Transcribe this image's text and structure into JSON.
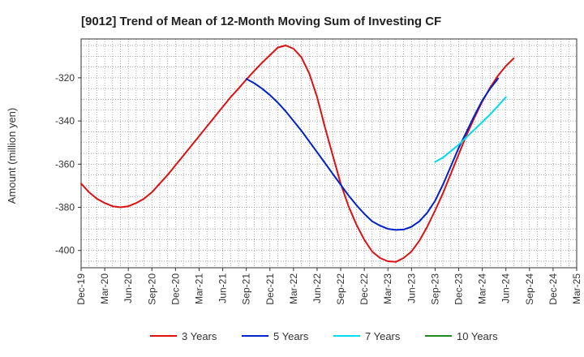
{
  "chart_data": {
    "type": "line",
    "title": "[9012]  Trend of Mean of 12-Month Moving Sum of Investing CF",
    "xlabel": "",
    "ylabel": "Amount (million yen)",
    "ylim": [
      -408,
      -302
    ],
    "yticks": [
      -400,
      -380,
      -360,
      -340,
      -320
    ],
    "x_categories": [
      "Dec-19",
      "Mar-20",
      "Jun-20",
      "Sep-20",
      "Dec-20",
      "Mar-21",
      "Jun-21",
      "Sep-21",
      "Dec-21",
      "Mar-22",
      "Jun-22",
      "Sep-22",
      "Dec-22",
      "Mar-23",
      "Jun-23",
      "Sep-23",
      "Dec-23",
      "Mar-24",
      "Jun-24",
      "Sep-24",
      "Dec-24",
      "Mar-25"
    ],
    "grid": true,
    "legend_position": "bottom",
    "series": [
      {
        "name": "3 Years",
        "color": "#dd1111",
        "start_index": 0,
        "values": [
          -369,
          -373,
          -376,
          -378,
          -379.5,
          -380,
          -379.5,
          -378,
          -376,
          -373,
          -369,
          -365,
          -360.5,
          -356,
          -351.5,
          -347,
          -342.5,
          -338,
          -333.5,
          -329,
          -325,
          -320.8,
          -316.8,
          -313,
          -309.5,
          -306,
          -305,
          -306.5,
          -310.5,
          -318,
          -329,
          -343,
          -356,
          -369,
          -379.5,
          -388,
          -395,
          -400.5,
          -403.5,
          -405,
          -405.3,
          -403.5,
          -400.5,
          -395.5,
          -389,
          -381.5,
          -373.5,
          -364.5,
          -355.5,
          -346.5,
          -338.5,
          -331,
          -324.5,
          -319,
          -314.5,
          -311
        ]
      },
      {
        "name": "5 Years",
        "color": "#0022cc",
        "start_index": 21,
        "values": [
          -320.5,
          -322.5,
          -325,
          -328,
          -331.5,
          -335.5,
          -340,
          -344.5,
          -349.5,
          -354.5,
          -359.5,
          -364.5,
          -369.5,
          -374.5,
          -379,
          -383,
          -386.5,
          -388.5,
          -390,
          -390.5,
          -390.3,
          -389,
          -386.5,
          -382.5,
          -377,
          -369.5,
          -361,
          -352.5,
          -345,
          -337.5,
          -330.5,
          -325,
          -320.3
        ]
      },
      {
        "name": "7 Years",
        "color": "#00ddee",
        "start_index": 45,
        "values": [
          -359,
          -357,
          -354,
          -351,
          -347.5,
          -344,
          -340.5,
          -337,
          -333,
          -329
        ]
      },
      {
        "name": "10 Years",
        "color": "#228822",
        "start_index": 54,
        "values": []
      }
    ]
  }
}
